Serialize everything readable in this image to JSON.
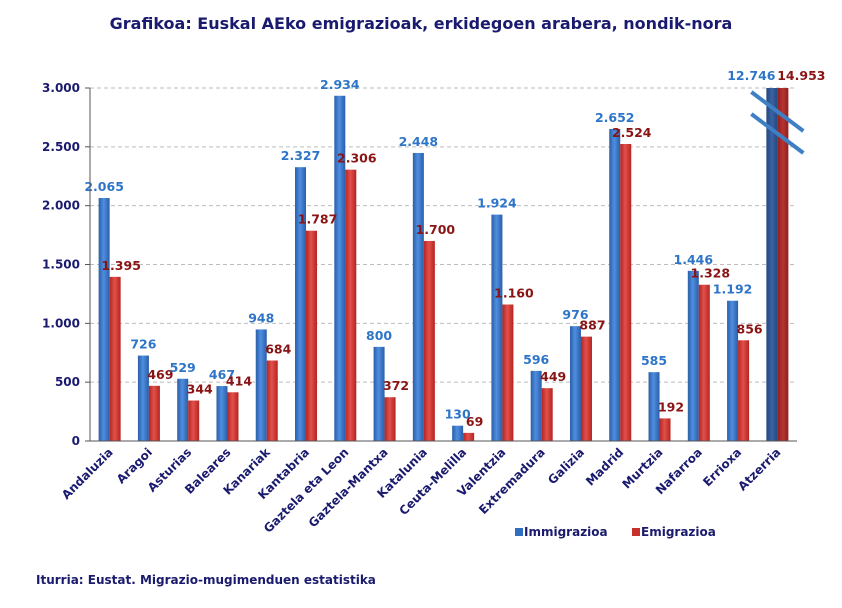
{
  "chart_data": {
    "type": "bar",
    "title": "Grafikoa: Euskal AEko emigrazioak, erkidegoen arabera, nondik-nora",
    "source": "Iturria: Eustat. Migrazio-mugimenduen estatistika",
    "categories": [
      "Andaluzia",
      "Aragoi",
      "Asturias",
      "Baleares",
      "Kanariak",
      "Kantabria",
      "Gaztela eta Leon",
      "Gaztela-Mantxa",
      "Katalunia",
      "Ceuta-Melilla",
      "Valentzia",
      "Extremadura",
      "Galizia",
      "Madrid",
      "Murtzia",
      "Nafarroa",
      "Errioxa",
      "Atzerria"
    ],
    "series": [
      {
        "name": "Immigrazioa",
        "color": "#2e6fc0",
        "values": [
          2065,
          726,
          529,
          467,
          948,
          2327,
          2934,
          800,
          2448,
          130,
          1924,
          596,
          976,
          2652,
          585,
          1446,
          1192,
          12746
        ],
        "labels": [
          "2.065",
          "726",
          "529",
          "467",
          "948",
          "2.327",
          "2.934",
          "800",
          "2.448",
          "130",
          "1.924",
          "596",
          "976",
          "2.652",
          "585",
          "1.446",
          "1.192",
          "12.746"
        ]
      },
      {
        "name": "Emigrazioa",
        "color": "#c8302c",
        "values": [
          1395,
          469,
          344,
          414,
          684,
          1787,
          2306,
          372,
          1700,
          69,
          1160,
          449,
          887,
          2524,
          192,
          1328,
          856,
          14953
        ],
        "labels": [
          "1.395",
          "469",
          "344",
          "414",
          "684",
          "1.787",
          "2.306",
          "372",
          "1.700",
          "69",
          "1.160",
          "449",
          "887",
          "2.524",
          "192",
          "1.328",
          "856",
          "14.953"
        ]
      }
    ],
    "ylim": [
      0,
      3000
    ],
    "yticks": [
      0,
      500,
      1000,
      1500,
      2000,
      2500,
      3000
    ],
    "ytick_labels": [
      "0",
      "500",
      "1.000",
      "1.500",
      "2.000",
      "2.500",
      "3.000"
    ],
    "axis_break": "Atzerria",
    "grid": true,
    "legend_position": "bottom-right",
    "xlabel": "",
    "ylabel": ""
  }
}
